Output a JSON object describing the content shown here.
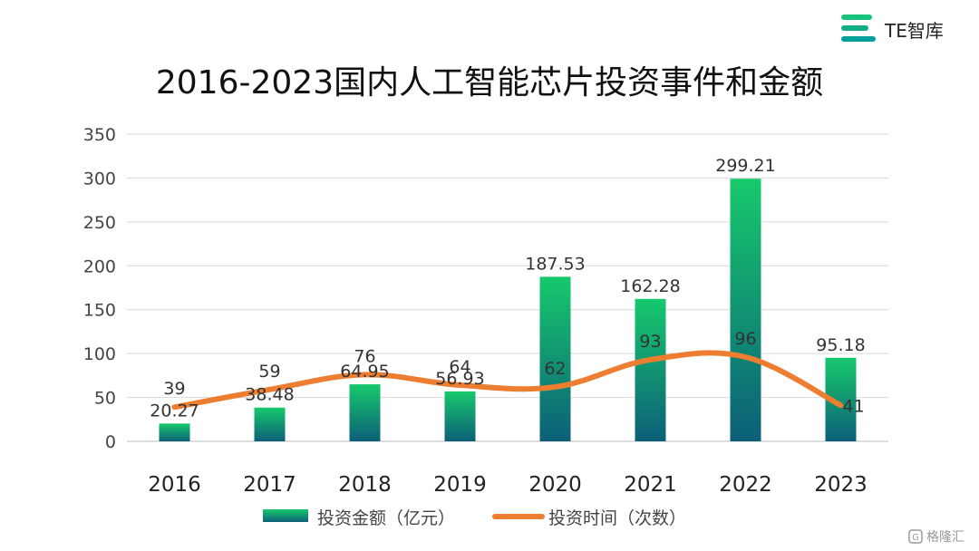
{
  "brand": {
    "name": "TE智库",
    "colors": [
      "#00b894",
      "#17c37b"
    ]
  },
  "watermark": {
    "text": "格隆汇"
  },
  "chart_data": {
    "type": "bar",
    "title": "2016-2023国内人工智能芯片投资事件和金额",
    "categories": [
      "2016",
      "2017",
      "2018",
      "2019",
      "2020",
      "2021",
      "2022",
      "2023"
    ],
    "ylim": [
      0,
      350
    ],
    "yticks": [
      0,
      50,
      100,
      150,
      200,
      250,
      300,
      350
    ],
    "grid": true,
    "legend_position": "bottom",
    "series": [
      {
        "name": "投资金额（亿元）",
        "type": "bar",
        "values": [
          20.27,
          38.48,
          64.95,
          56.93,
          187.53,
          162.28,
          299.21,
          95.18
        ],
        "labels": [
          "20.27",
          "38.48",
          "64.95",
          "56.93",
          "187.53",
          "162.28",
          "299.21",
          "95.18"
        ],
        "color_top": "#17c96c",
        "color_bottom": "#0c5f78"
      },
      {
        "name": "投资时间（次数）",
        "type": "line",
        "values": [
          39,
          59,
          76,
          64,
          62,
          93,
          96,
          41
        ],
        "labels": [
          "39",
          "59",
          "76",
          "64",
          "62",
          "93",
          "96",
          "41"
        ],
        "color": "#ed7d31"
      }
    ]
  }
}
